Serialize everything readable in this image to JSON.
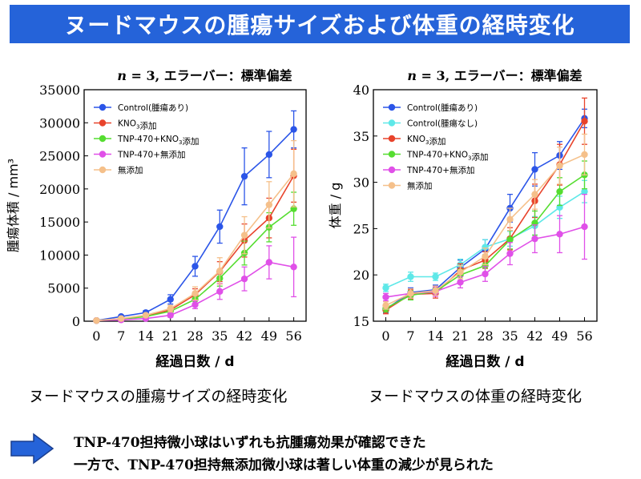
{
  "banner_title": "ヌードマウスの腫瘍サイズおよび体重の経時変化",
  "chart_data": [
    {
      "type": "line",
      "subtitle_n": "n",
      "subtitle_rest": " = 3, エラーバー：標準偏差",
      "xlabel": "経過日数 / d",
      "ylabel": "腫瘍体積 / mm³",
      "x": [
        0,
        7,
        14,
        21,
        28,
        35,
        42,
        49,
        56
      ],
      "ylim": [
        0,
        35000
      ],
      "yticks": [
        0,
        5000,
        10000,
        15000,
        20000,
        25000,
        30000,
        35000
      ],
      "legend_position": "top-left",
      "series": [
        {
          "name": "Control(腫瘍あり)",
          "color": "#2b55e8",
          "values": [
            100,
            700,
            1300,
            3300,
            8300,
            14300,
            21900,
            25200,
            29000
          ],
          "errors": [
            50,
            200,
            300,
            700,
            1500,
            2500,
            4300,
            3500,
            2800
          ]
        },
        {
          "name": "KNO₃添加",
          "color": "#e8432b",
          "values": [
            100,
            350,
            800,
            1700,
            4000,
            7500,
            12200,
            15600,
            22000
          ],
          "errors": [
            50,
            100,
            200,
            400,
            900,
            1500,
            2500,
            3000,
            4000
          ]
        },
        {
          "name": "TNP-470+KNO₃添加",
          "color": "#55dd30",
          "values": [
            100,
            300,
            700,
            1500,
            3300,
            6500,
            10300,
            14200,
            17000
          ],
          "errors": [
            50,
            100,
            200,
            300,
            700,
            1200,
            1800,
            2200,
            2500
          ]
        },
        {
          "name": "TNP-470+無添加",
          "color": "#e050e8",
          "values": [
            100,
            200,
            400,
            900,
            2500,
            4500,
            6400,
            8900,
            8200
          ],
          "errors": [
            50,
            80,
            150,
            300,
            600,
            1200,
            1800,
            2500,
            4500
          ]
        },
        {
          "name": "無添加",
          "color": "#f5c08a",
          "values": [
            100,
            400,
            900,
            1900,
            4200,
            7600,
            13000,
            17600,
            22300
          ],
          "errors": [
            50,
            120,
            250,
            500,
            1000,
            2000,
            2800,
            3500,
            5000
          ]
        }
      ]
    },
    {
      "type": "line",
      "subtitle_n": "n",
      "subtitle_rest": " = 3, エラーバー：標準偏差",
      "xlabel": "経過日数 / d",
      "ylabel": "体重 / g",
      "x": [
        0,
        7,
        14,
        21,
        28,
        35,
        42,
        49,
        56
      ],
      "ylim": [
        15,
        40
      ],
      "yticks": [
        15,
        20,
        25,
        30,
        35,
        40
      ],
      "legend_position": "top-left",
      "series": [
        {
          "name": "Control(腫瘍あり)",
          "color": "#2b55e8",
          "values": [
            16.3,
            18.1,
            18.4,
            20.8,
            22.8,
            27.2,
            31.4,
            32.9,
            36.9
          ],
          "errors": [
            0.4,
            0.5,
            0.5,
            0.8,
            1.0,
            1.5,
            1.8,
            1.5,
            1.0
          ]
        },
        {
          "name": "Control(腫瘍なし)",
          "color": "#5ee8e8",
          "values": [
            18.6,
            19.8,
            19.8,
            21.1,
            23.0,
            23.9,
            25.3,
            27.3,
            29.0
          ],
          "errors": [
            0.4,
            0.5,
            0.4,
            0.6,
            0.8,
            0.8,
            1.0,
            1.2,
            1.2
          ]
        },
        {
          "name": "KNO₃添加",
          "color": "#e8432b",
          "values": [
            16.2,
            17.9,
            18.0,
            20.5,
            21.6,
            23.9,
            28.0,
            31.9,
            36.6
          ],
          "errors": [
            0.4,
            0.5,
            0.5,
            0.7,
            0.9,
            1.2,
            1.8,
            2.2,
            2.5
          ]
        },
        {
          "name": "TNP-470+KNO₃添加",
          "color": "#55dd30",
          "values": [
            16.4,
            17.8,
            18.2,
            20.0,
            21.0,
            23.8,
            25.6,
            29.0,
            30.8
          ],
          "errors": [
            0.4,
            0.5,
            0.4,
            0.6,
            0.8,
            1.0,
            1.3,
            1.5,
            1.5
          ]
        },
        {
          "name": "TNP-470+無添加",
          "color": "#e050e8",
          "values": [
            17.6,
            18.0,
            18.2,
            19.2,
            20.1,
            22.3,
            23.9,
            24.4,
            25.2
          ],
          "errors": [
            0.4,
            0.5,
            0.5,
            0.6,
            0.8,
            1.2,
            1.5,
            2.0,
            3.5
          ]
        },
        {
          "name": "無添加",
          "color": "#f5c08a",
          "values": [
            16.7,
            18.0,
            18.3,
            20.3,
            22.0,
            26.0,
            28.7,
            31.8,
            33.0
          ],
          "errors": [
            0.4,
            0.5,
            0.5,
            0.7,
            0.9,
            1.2,
            1.6,
            2.0,
            2.2
          ]
        }
      ]
    }
  ],
  "captions": {
    "left": "ヌードマウスの腫瘍サイズの経時変化",
    "right": "ヌードマウスの体重の経時変化"
  },
  "conclusion": {
    "arrow_icon": "right-arrow-icon",
    "line1": "TNP-470担持微小球はいずれも抗腫瘍効果が確認できた",
    "line2": "一方で、TNP-470担持無添加微小球は著しい体重の減少が見られた"
  }
}
